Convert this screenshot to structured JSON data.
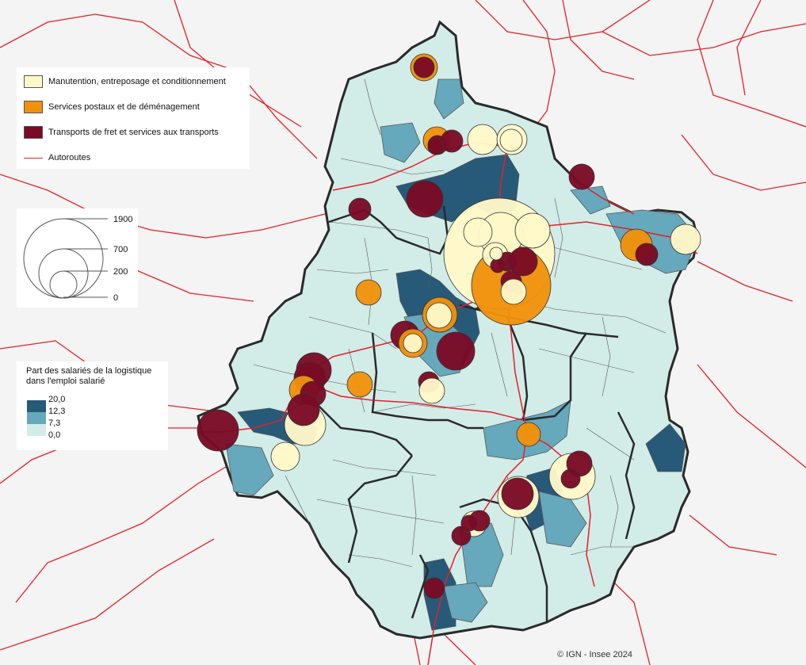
{
  "colors": {
    "background": "#f4f4f4",
    "class_0_7_3": "#d2ece8",
    "class_7_3_12_3": "#66a8bc",
    "class_12_3_20": "#265a78",
    "manutention": "#fff8c9",
    "postaux": "#f0910b",
    "fret": "#7a0a25",
    "autoroute": "#e4202a",
    "border_dept": "#2a2a2a",
    "border_commune": "#555555"
  },
  "legend_categories": {
    "items": [
      {
        "label": "Manutention, entreposage et conditionnement",
        "color_key": "manutention"
      },
      {
        "label": "Services postaux et de déménagement",
        "color_key": "postaux"
      },
      {
        "label": "Transports de fret et services aux transports",
        "color_key": "fret"
      }
    ],
    "road_label": "Autoroutes"
  },
  "legend_size": {
    "values": [
      "1900",
      "700",
      "200",
      "0"
    ]
  },
  "legend_choropleth": {
    "title": "Part des salariés de la logistique dans l'emploi salarié",
    "breaks": [
      "20,0",
      "12,3",
      "7,3",
      "0,0"
    ]
  },
  "credit": "© IGN - Insee 2024"
}
